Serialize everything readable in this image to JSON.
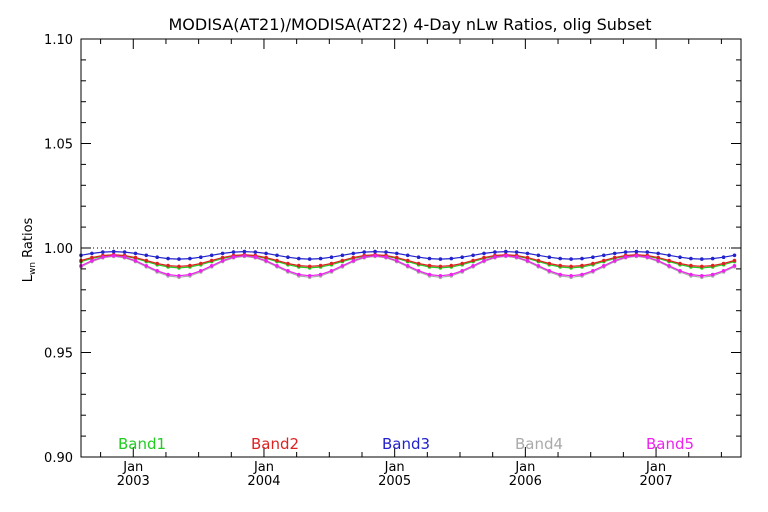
{
  "chart_data": {
    "type": "line",
    "title": "MODISA(AT21)/MODISA(AT22) 4-Day nLw Ratios, olig Subset",
    "ylabel_main": "L",
    "ylabel_sub": "wn",
    "ylabel_rest": " Ratios",
    "xlabel": "",
    "xlim": [
      2002.6,
      2007.65
    ],
    "ylim": [
      0.9,
      1.1
    ],
    "y_ticks": [
      {
        "value": 0.9,
        "label": "0.90"
      },
      {
        "value": 0.95,
        "label": "0.95"
      },
      {
        "value": 1.0,
        "label": "1.00"
      },
      {
        "value": 1.05,
        "label": "1.05"
      },
      {
        "value": 1.1,
        "label": "1.10"
      }
    ],
    "x_ticks": [
      {
        "value": 2003.0,
        "month": "Jan",
        "year": "2003"
      },
      {
        "value": 2004.0,
        "month": "Jan",
        "year": "2004"
      },
      {
        "value": 2005.0,
        "month": "Jan",
        "year": "2005"
      },
      {
        "value": 2006.0,
        "month": "Jan",
        "year": "2006"
      },
      {
        "value": 2007.0,
        "month": "Jan",
        "year": "2007"
      }
    ],
    "reference_line": 1.0,
    "grid": false,
    "legend_position": "bottom-inside",
    "series": [
      {
        "name": "Band1",
        "color": "#22cc22",
        "base": 0.9935,
        "amp": 0.003
      },
      {
        "name": "Band2",
        "color": "#dd2222",
        "base": 0.994,
        "amp": 0.0028
      },
      {
        "name": "Band3",
        "color": "#2222cc",
        "base": 0.9965,
        "amp": 0.0018
      },
      {
        "name": "Band4",
        "color": "#aaaaaa",
        "base": 0.991,
        "amp": 0.005
      },
      {
        "name": "Band5",
        "color": "#ee22ee",
        "base": 0.9915,
        "amp": 0.0048
      }
    ]
  }
}
